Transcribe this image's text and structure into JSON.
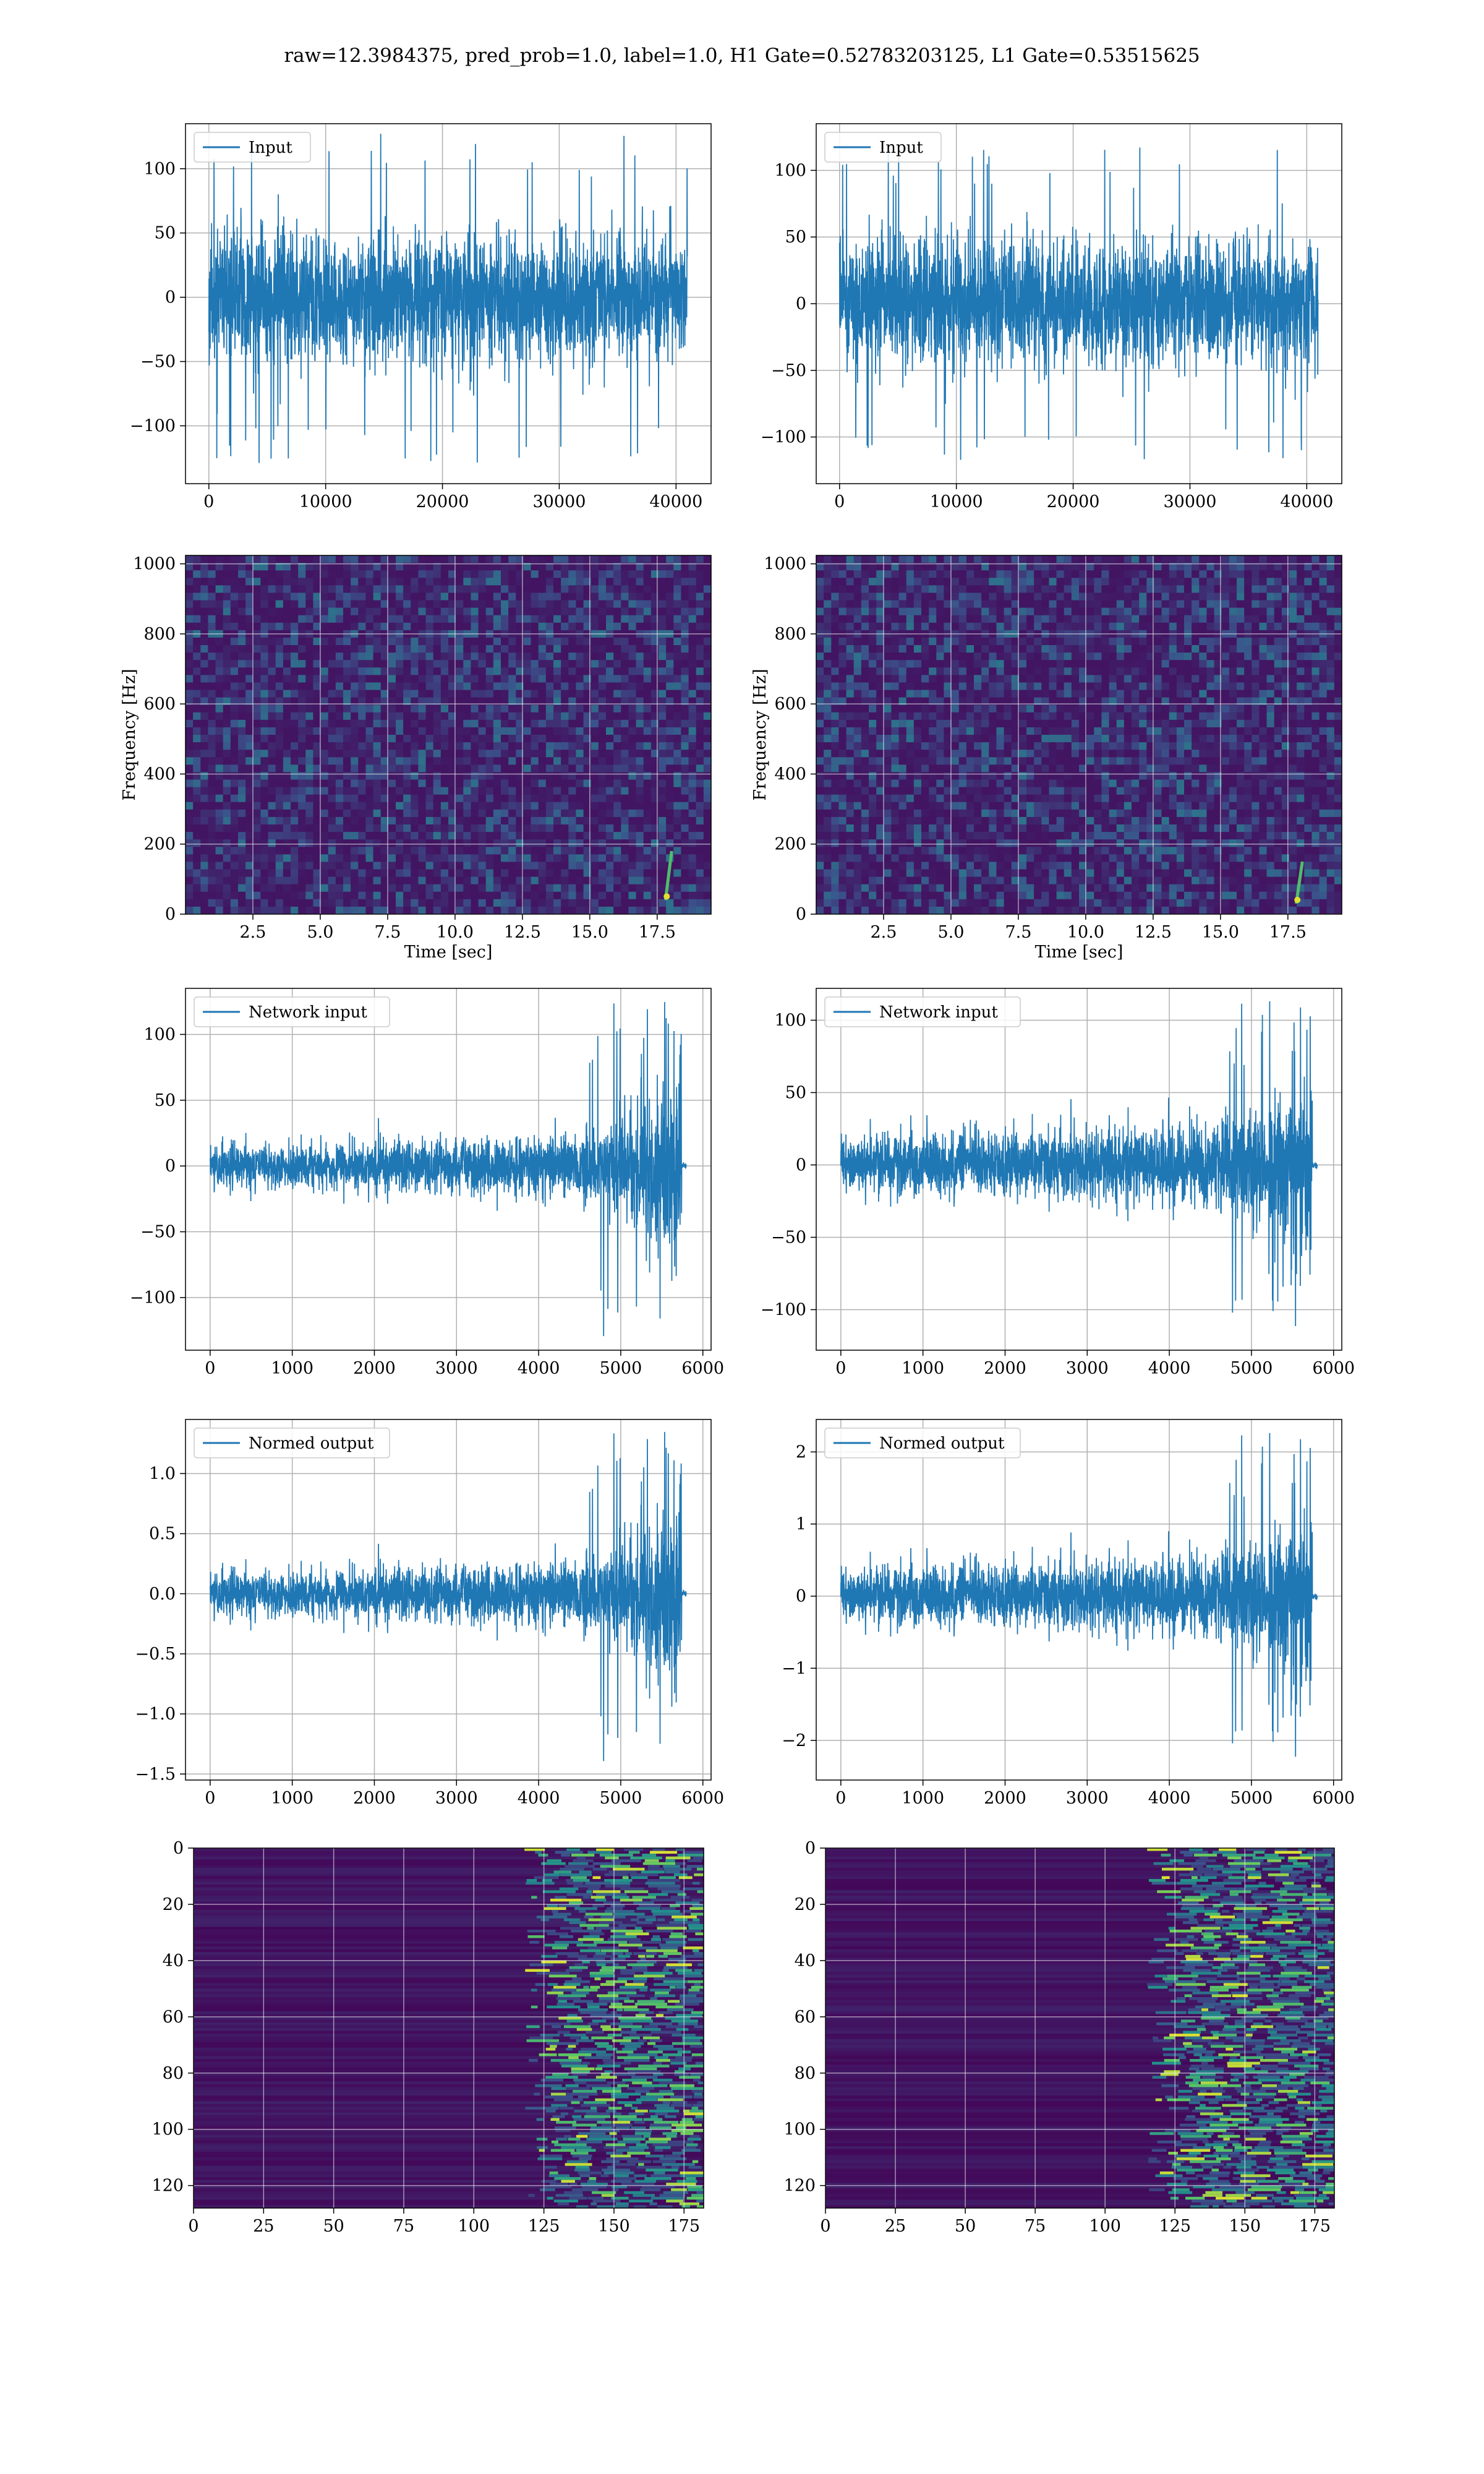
{
  "figure": {
    "title": "raw=12.3984375, pred_prob=1.0, label=1.0, H1 Gate=0.52783203125, L1 Gate=0.53515625"
  },
  "colors": {
    "line": "#1f77b4",
    "grid": "#b0b0b0",
    "spec_bg": "#3b1f5e",
    "viridis": [
      "#440154",
      "#3b528b",
      "#21908c",
      "#5dc863",
      "#fde725"
    ]
  },
  "chart_data": [
    {
      "id": "r1l",
      "type": "line",
      "row": 0,
      "col": 0,
      "legend": "Input",
      "legend_position": "upper-left",
      "xlim": [
        -2000,
        43000
      ],
      "ylim": [
        -145,
        135
      ],
      "xticks": [
        0,
        10000,
        20000,
        30000,
        40000
      ],
      "yticks": [
        -100,
        -50,
        0,
        50,
        100
      ],
      "xlabel": "",
      "ylabel": "",
      "signal": {
        "kind": "noise",
        "x_end": 40960,
        "amp": 75,
        "peak": 130,
        "seed": 11
      },
      "grid": true
    },
    {
      "id": "r1r",
      "type": "line",
      "row": 0,
      "col": 1,
      "legend": "Input",
      "legend_position": "upper-left",
      "xlim": [
        -2000,
        43000
      ],
      "ylim": [
        -135,
        135
      ],
      "xticks": [
        0,
        10000,
        20000,
        30000,
        40000
      ],
      "yticks": [
        -100,
        -50,
        0,
        50,
        100
      ],
      "xlabel": "",
      "ylabel": "",
      "signal": {
        "kind": "noise",
        "x_end": 40960,
        "amp": 72,
        "peak": 118,
        "seed": 23
      },
      "grid": true
    },
    {
      "id": "r2l",
      "type": "heatmap",
      "row": 1,
      "col": 0,
      "xlim": [
        0,
        19.5
      ],
      "ylim": [
        0,
        1024
      ],
      "xticks": [
        2.5,
        5.0,
        7.5,
        10.0,
        12.5,
        15.0,
        17.5
      ],
      "yticks": [
        0,
        200,
        400,
        600,
        800,
        1000
      ],
      "xlabel": "Time [sec]",
      "ylabel": "Frequency [Hz]",
      "chirp": {
        "t": 17.9,
        "f_low": 40,
        "f_high": 180
      },
      "seed": 5,
      "grid": true
    },
    {
      "id": "r2r",
      "type": "heatmap",
      "row": 1,
      "col": 1,
      "xlim": [
        0,
        19.5
      ],
      "ylim": [
        0,
        1024
      ],
      "xticks": [
        2.5,
        5.0,
        7.5,
        10.0,
        12.5,
        15.0,
        17.5
      ],
      "yticks": [
        0,
        200,
        400,
        600,
        800,
        1000
      ],
      "xlabel": "Time [sec]",
      "ylabel": "Frequency [Hz]",
      "chirp": {
        "t": 17.9,
        "f_low": 30,
        "f_high": 150
      },
      "seed": 9,
      "grid": true
    },
    {
      "id": "r3l",
      "type": "line",
      "row": 2,
      "col": 0,
      "legend": "Network input",
      "legend_position": "upper-left",
      "xlim": [
        -300,
        6100
      ],
      "ylim": [
        -140,
        135
      ],
      "xticks": [
        0,
        1000,
        2000,
        3000,
        4000,
        5000,
        6000
      ],
      "yticks": [
        -100,
        -50,
        0,
        50,
        100
      ],
      "xlabel": "",
      "ylabel": "",
      "signal": {
        "kind": "chirp",
        "x_end": 5800,
        "cut": 5740,
        "base": 14,
        "peak": 125,
        "neg_peak": 130,
        "seed": 31
      },
      "grid": true
    },
    {
      "id": "r3r",
      "type": "line",
      "row": 2,
      "col": 1,
      "legend": "Network input",
      "legend_position": "upper-left",
      "xlim": [
        -300,
        6100
      ],
      "ylim": [
        -128,
        122
      ],
      "xticks": [
        0,
        1000,
        2000,
        3000,
        4000,
        5000,
        6000
      ],
      "yticks": [
        -100,
        -50,
        0,
        50,
        100
      ],
      "xlabel": "",
      "ylabel": "",
      "signal": {
        "kind": "chirp",
        "x_end": 5800,
        "cut": 5740,
        "base": 17,
        "peak": 115,
        "neg_peak": 115,
        "seed": 43
      },
      "grid": true
    },
    {
      "id": "r4l",
      "type": "line",
      "row": 3,
      "col": 0,
      "legend": "Normed output",
      "legend_position": "upper-left",
      "xlim": [
        -300,
        6100
      ],
      "ylim": [
        -1.55,
        1.45
      ],
      "xticks": [
        0,
        1000,
        2000,
        3000,
        4000,
        5000,
        6000
      ],
      "yticks": [
        -1.5,
        -1.0,
        -0.5,
        0.0,
        0.5,
        1.0
      ],
      "ytick_decimals": 1,
      "xlabel": "",
      "ylabel": "",
      "signal": {
        "kind": "chirp",
        "x_end": 5800,
        "cut": 5740,
        "base": 0.16,
        "peak": 1.35,
        "neg_peak": 1.4,
        "seed": 31
      },
      "grid": true
    },
    {
      "id": "r4r",
      "type": "line",
      "row": 3,
      "col": 1,
      "legend": "Normed output",
      "legend_position": "upper-left",
      "xlim": [
        -300,
        6100
      ],
      "ylim": [
        -2.55,
        2.45
      ],
      "xticks": [
        0,
        1000,
        2000,
        3000,
        4000,
        5000,
        6000
      ],
      "yticks": [
        -2,
        -1,
        0,
        1,
        2
      ],
      "xlabel": "",
      "ylabel": "",
      "signal": {
        "kind": "chirp",
        "x_end": 5800,
        "cut": 5740,
        "base": 0.33,
        "peak": 2.3,
        "neg_peak": 2.3,
        "seed": 43
      },
      "grid": true
    },
    {
      "id": "r5l",
      "type": "heatmap",
      "row": 4,
      "col": 0,
      "xlim": [
        0,
        182
      ],
      "ylim": [
        128,
        0
      ],
      "xticks": [
        0,
        25,
        50,
        75,
        100,
        125,
        150,
        175
      ],
      "yticks": [
        0,
        20,
        40,
        60,
        80,
        100,
        120
      ],
      "xlabel": "",
      "ylabel": "",
      "activation": {
        "onset": 128,
        "seed": 17
      },
      "grid": true
    },
    {
      "id": "r5r",
      "type": "heatmap",
      "row": 4,
      "col": 1,
      "xlim": [
        0,
        182
      ],
      "ylim": [
        128,
        0
      ],
      "xticks": [
        0,
        25,
        50,
        75,
        100,
        125,
        150,
        175
      ],
      "yticks": [
        0,
        20,
        40,
        60,
        80,
        100,
        120
      ],
      "xlabel": "",
      "ylabel": "",
      "activation": {
        "onset": 125,
        "seed": 29
      },
      "grid": true
    }
  ]
}
